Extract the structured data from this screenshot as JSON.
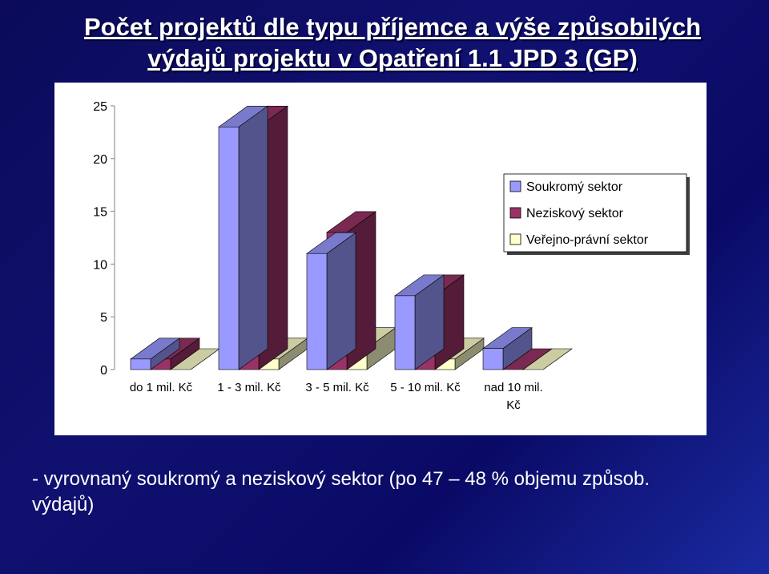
{
  "title_line1": "Počet projektů dle typu příjemce a výše způsobilých",
  "title_line2": "výdajů projektu v Opatření 1.1 JPD 3 (GP)",
  "footer_line1": "- vyrovnaný soukromý a neziskový sektor (po 47 – 48 % objemu způsob.",
  "footer_line2": "výdajů)",
  "colors": {
    "soukromy": "#9999ff",
    "neziskovy": "#993366",
    "verejny": "#ffffcc"
  },
  "chart_data": {
    "type": "bar",
    "categories": [
      [
        "do 1 mil. Kč"
      ],
      [
        "1 - 3 mil. Kč"
      ],
      [
        "3 - 5 mil. Kč"
      ],
      [
        "5 - 10 mil. Kč"
      ],
      [
        "nad 10 mil.",
        "Kč"
      ]
    ],
    "series": [
      {
        "name": "Soukromý sektor",
        "values": [
          1,
          23,
          11,
          7,
          2
        ]
      },
      {
        "name": "Neziskový sektor",
        "values": [
          1,
          23,
          13,
          7,
          0
        ]
      },
      {
        "name": "Veřejno-právní sektor",
        "values": [
          0,
          1,
          2,
          1,
          0
        ]
      }
    ],
    "yticks": [
      "0",
      "5",
      "10",
      "15",
      "20",
      "25"
    ],
    "ylim": [
      0,
      25
    ],
    "legend_position": "right",
    "grid": false
  }
}
